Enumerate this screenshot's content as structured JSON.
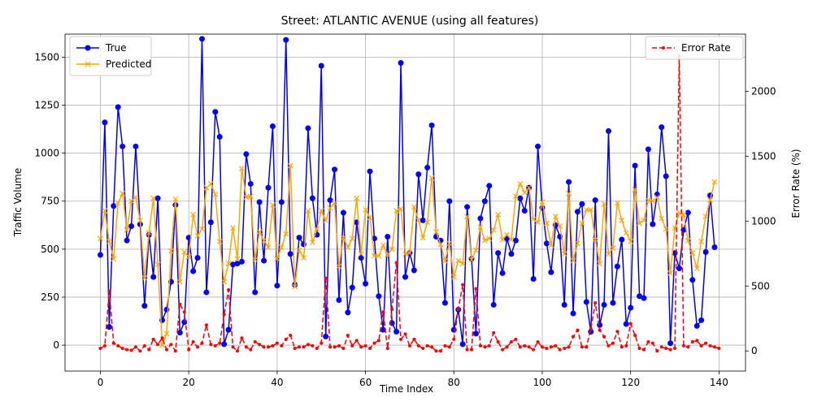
{
  "chart_data": {
    "type": "line",
    "title": "Street: ATLANTIC AVENUE (using all features)",
    "xlabel": "Time Index",
    "ylabel": "Traffic Volume",
    "ylabel_right": "Error Rate (%)",
    "xlim": [
      -8,
      146
    ],
    "ylim": [
      -135,
      1620
    ],
    "ylim_right": [
      -155,
      2440
    ],
    "x_ticks": [
      0,
      20,
      40,
      60,
      80,
      100,
      120,
      140
    ],
    "y_ticks": [
      0,
      250,
      500,
      750,
      1000,
      1250,
      1500
    ],
    "y_ticks_right": [
      0,
      500,
      1000,
      1500,
      2000
    ],
    "grid": true,
    "legend_left_position": "upper-left",
    "legend_right_position": "upper-right",
    "series": [
      {
        "name": "True",
        "axis": "left",
        "color": "#0000ff",
        "marker": "circle",
        "values": [
          470,
          1160,
          95,
          725,
          1240,
          1035,
          545,
          620,
          1035,
          630,
          205,
          575,
          355,
          765,
          130,
          185,
          330,
          730,
          65,
          120,
          560,
          385,
          455,
          1595,
          275,
          640,
          1215,
          1085,
          5,
          80,
          420,
          425,
          435,
          995,
          840,
          275,
          745,
          440,
          820,
          1140,
          310,
          745,
          1590,
          475,
          315,
          560,
          525,
          1130,
          765,
          575,
          1455,
          45,
          755,
          915,
          235,
          690,
          170,
          300,
          640,
          455,
          320,
          905,
          555,
          255,
          80,
          565,
          115,
          70,
          1470,
          355,
          480,
          390,
          890,
          650,
          925,
          1145,
          565,
          545,
          220,
          750,
          80,
          185,
          5,
          720,
          450,
          60,
          660,
          750,
          830,
          210,
          480,
          375,
          555,
          475,
          545,
          765,
          700,
          820,
          345,
          1035,
          715,
          530,
          380,
          625,
          565,
          210,
          850,
          165,
          695,
          735,
          225,
          70,
          755,
          105,
          210,
          1115,
          220,
          410,
          550,
          110,
          195,
          935,
          255,
          245,
          1020,
          630,
          785,
          1135,
          880,
          10,
          480,
          400,
          600,
          690,
          340,
          100,
          130,
          485,
          780,
          510
        ]
      },
      {
        "name": "Predicted",
        "axis": "left",
        "color": "#ffa500",
        "marker": "x",
        "values": [
          555,
          700,
          540,
          450,
          740,
          790,
          600,
          750,
          770,
          650,
          350,
          585,
          765,
          420,
          0,
          60,
          490,
          760,
          330,
          485,
          460,
          680,
          570,
          605,
          820,
          840,
          785,
          540,
          330,
          425,
          610,
          450,
          920,
          770,
          775,
          445,
          590,
          545,
          510,
          730,
          450,
          510,
          580,
          935,
          305,
          495,
          455,
          700,
          535,
          605,
          700,
          650,
          715,
          740,
          410,
          560,
          510,
          555,
          765,
          475,
          705,
          665,
          465,
          465,
          520,
          470,
          500,
          700,
          710,
          475,
          480,
          720,
          650,
          560,
          640,
          870,
          590,
          525,
          440,
          530,
          355,
          440,
          425,
          670,
          445,
          495,
          615,
          545,
          555,
          600,
          680,
          550,
          575,
          550,
          775,
          840,
          795,
          820,
          655,
          640,
          745,
          635,
          520,
          670,
          620,
          475,
          790,
          440,
          530,
          635,
          705,
          705,
          550,
          425,
          735,
          475,
          505,
          740,
          650,
          585,
          540,
          810,
          635,
          650,
          755,
          750,
          770,
          660,
          605,
          375,
          610,
          690,
          680,
          545,
          480,
          400,
          540,
          670,
          755,
          850
        ]
      },
      {
        "name": "Error Rate",
        "axis": "right",
        "color": "#ff0000",
        "marker": "dot",
        "linestyle": "dashed",
        "values": [
          20,
          40,
          460,
          60,
          40,
          20,
          10,
          5,
          30,
          0,
          40,
          10,
          90,
          50,
          100,
          10,
          50,
          0,
          360,
          300,
          10,
          70,
          30,
          60,
          200,
          50,
          40,
          60,
          280,
          470,
          30,
          0,
          100,
          30,
          10,
          70,
          50,
          30,
          30,
          40,
          60,
          40,
          90,
          120,
          20,
          30,
          30,
          50,
          40,
          20,
          60,
          560,
          30,
          30,
          40,
          20,
          120,
          40,
          80,
          30,
          40,
          20,
          60,
          80,
          300,
          20,
          320,
          680,
          90,
          130,
          40,
          90,
          40,
          20,
          40,
          30,
          0,
          0,
          40,
          30,
          90,
          320,
          510,
          10,
          10,
          480,
          40,
          30,
          40,
          140,
          70,
          10,
          30,
          70,
          90,
          30,
          40,
          30,
          10,
          70,
          30,
          20,
          30,
          40,
          10,
          20,
          30,
          110,
          160,
          30,
          30,
          170,
          370,
          160,
          110,
          40,
          60,
          150,
          30,
          40,
          210,
          120,
          20,
          10,
          70,
          60,
          0,
          30,
          20,
          10,
          20,
          2270,
          40,
          30,
          70,
          80,
          40,
          60,
          40,
          30,
          20
        ]
      }
    ]
  }
}
